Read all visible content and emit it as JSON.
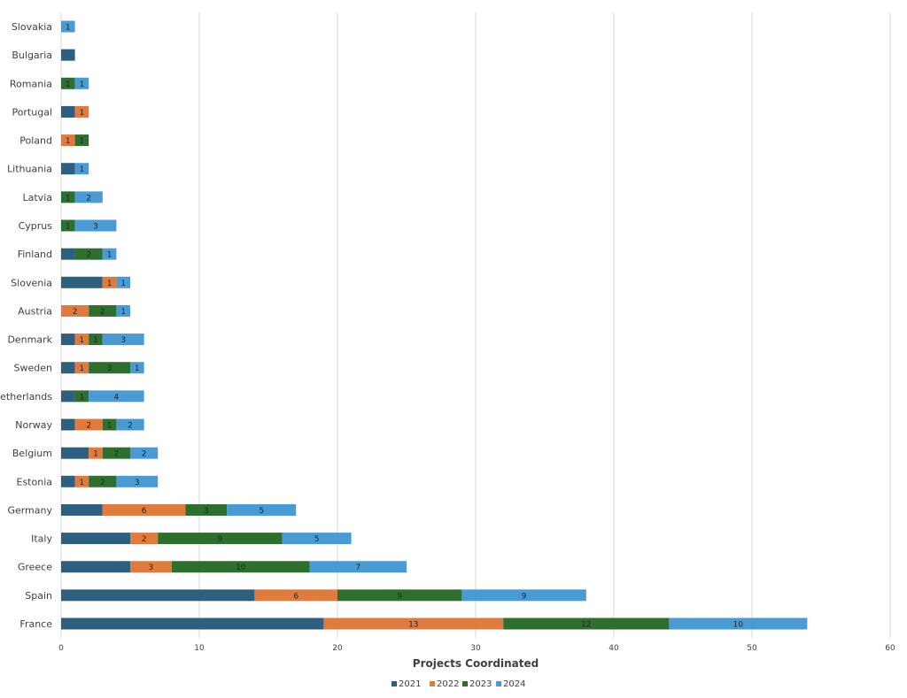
{
  "chart_data": {
    "type": "bar",
    "orientation": "horizontal",
    "stacked": true,
    "categories": [
      "Slovakia",
      "Bulgaria",
      "Romania",
      "Portugal",
      "Poland",
      "Lithuania",
      "Latvia",
      "Cyprus",
      "Finland",
      "Slovenia",
      "Austria",
      "Denmark",
      "Sweden",
      "Netherlands",
      "Norway",
      "Belgium",
      "Estonia",
      "Germany",
      "Italy",
      "Greece",
      "Spain",
      "France"
    ],
    "series": [
      {
        "name": "2021",
        "color": "#2e5f7f",
        "values": [
          0,
          1,
          0,
          1,
          0,
          1,
          0,
          0,
          1,
          3,
          0,
          1,
          1,
          1,
          1,
          2,
          1,
          3,
          5,
          5,
          14,
          19
        ]
      },
      {
        "name": "2022",
        "color": "#e07b3f",
        "values": [
          0,
          0,
          0,
          1,
          1,
          0,
          0,
          0,
          0,
          1,
          2,
          1,
          1,
          0,
          2,
          1,
          1,
          6,
          2,
          3,
          6,
          13
        ]
      },
      {
        "name": "2023",
        "color": "#2e6e2e",
        "values": [
          0,
          0,
          1,
          0,
          1,
          0,
          1,
          1,
          2,
          0,
          2,
          1,
          3,
          1,
          1,
          2,
          2,
          3,
          9,
          10,
          9,
          12
        ]
      },
      {
        "name": "2024",
        "color": "#4a9ad4",
        "values": [
          1,
          0,
          1,
          0,
          0,
          1,
          2,
          3,
          1,
          1,
          1,
          3,
          1,
          4,
          2,
          2,
          3,
          5,
          5,
          7,
          9,
          10
        ]
      }
    ],
    "title": "",
    "xlabel": "Projects Coordinated",
    "ylabel": "",
    "xlim": [
      0,
      60
    ],
    "xticks": [
      0,
      10,
      20,
      30,
      40,
      50,
      60
    ],
    "grid": true,
    "legend": "bottom"
  }
}
